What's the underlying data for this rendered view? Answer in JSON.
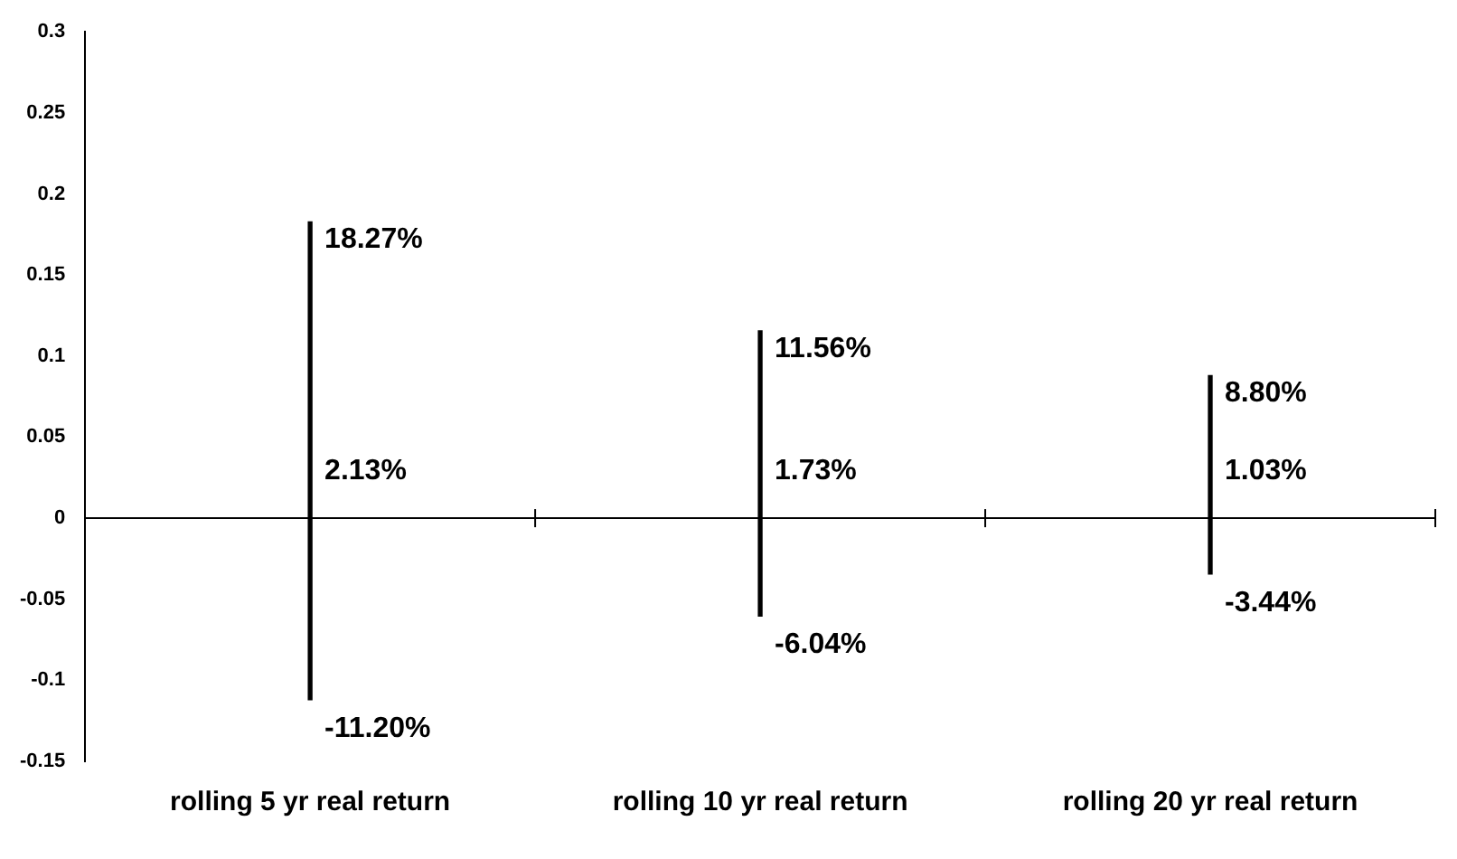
{
  "chart_data": {
    "type": "bar",
    "categories": [
      "rolling 5 yr real return",
      "rolling 10 yr real return",
      "rolling 20 yr real return"
    ],
    "base": [
      -0.112,
      -0.0604,
      -0.0344
    ],
    "values": [
      0.2947,
      0.176,
      0.1224
    ],
    "color": "#000000",
    "ylim": [
      -0.15,
      0.3
    ],
    "yticks": [
      -0.15,
      -0.1,
      -0.05,
      0,
      0.05,
      0.1,
      0.15,
      0.2,
      0.25,
      0.3
    ],
    "annotations": [
      {
        "text": "18.27%",
        "x": "rolling 5 yr real return",
        "y": 0.1827
      },
      "2.13%",
      {
        "text": "-11.20%",
        "x": "rolling 5 yr real return",
        "y": -0.112
      },
      {
        "text": "11.56%",
        "x": "rolling 10 yr real return",
        "y": 0.1156
      },
      "1.73%",
      {
        "text": "-6.04%",
        "x": "rolling 10 yr real return",
        "y": -0.0604
      },
      {
        "text": "8.80%",
        "x": "rolling 20 yr real return",
        "y": 0.088
      },
      "1.03%",
      {
        "text": "-3.44%",
        "x": "rolling 20 yr real return",
        "y": -0.0344
      }
    ],
    "ref_lines": [
      {
        "axis": "y",
        "value": 0,
        "color": "#000000"
      }
    ],
    "legend": false
  }
}
